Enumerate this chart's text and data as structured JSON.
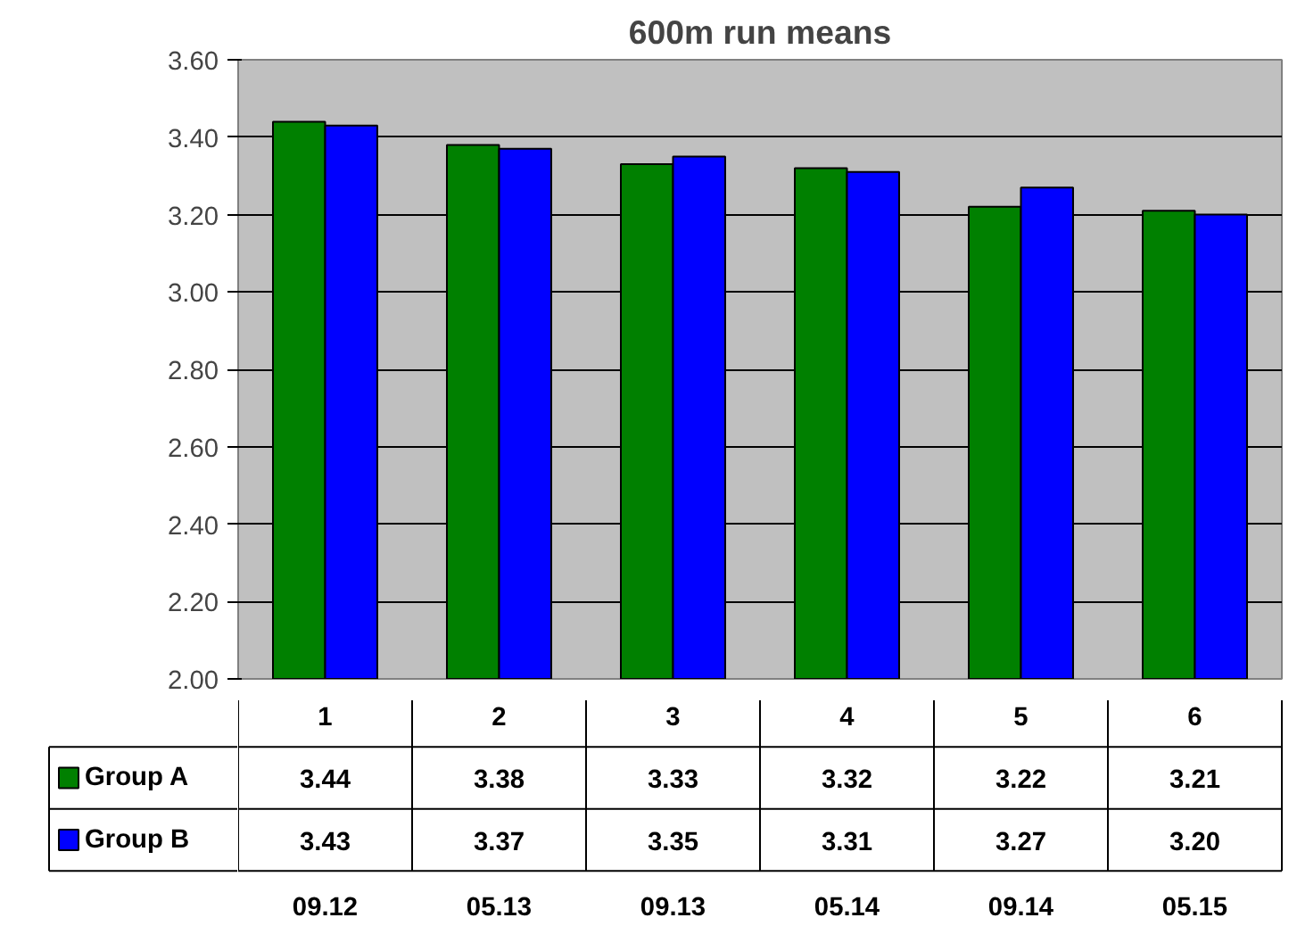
{
  "chart_data": {
    "type": "bar",
    "title": "600m run means",
    "categories": [
      "1",
      "2",
      "3",
      "4",
      "5",
      "6"
    ],
    "series": [
      {
        "name": "Group A",
        "color": "#008000",
        "values": [
          3.44,
          3.38,
          3.33,
          3.32,
          3.22,
          3.21
        ],
        "value_labels": [
          "3.44",
          "3.38",
          "3.33",
          "3.32",
          "3.22",
          "3.21"
        ]
      },
      {
        "name": "Group B",
        "color": "#0000ff",
        "values": [
          3.43,
          3.37,
          3.35,
          3.31,
          3.27,
          3.2
        ],
        "value_labels": [
          "3.43",
          "3.37",
          "3.35",
          "3.31",
          "3.27",
          "3.20"
        ]
      }
    ],
    "ylim": [
      2.0,
      3.6
    ],
    "yticks": [
      {
        "value": 2.0,
        "label": "2.00"
      },
      {
        "value": 2.2,
        "label": "2.20"
      },
      {
        "value": 2.4,
        "label": "2.40"
      },
      {
        "value": 2.6,
        "label": "2.60"
      },
      {
        "value": 2.8,
        "label": "2.80"
      },
      {
        "value": 3.0,
        "label": "3.00"
      },
      {
        "value": 3.2,
        "label": "3.20"
      },
      {
        "value": 3.4,
        "label": "3.40"
      },
      {
        "value": 3.6,
        "label": "3.60"
      }
    ],
    "grid": "y",
    "legend": "bottom",
    "annotations": [
      "09.12",
      "05.13",
      "09.13",
      "05.14",
      "09.14",
      "05.15"
    ]
  }
}
